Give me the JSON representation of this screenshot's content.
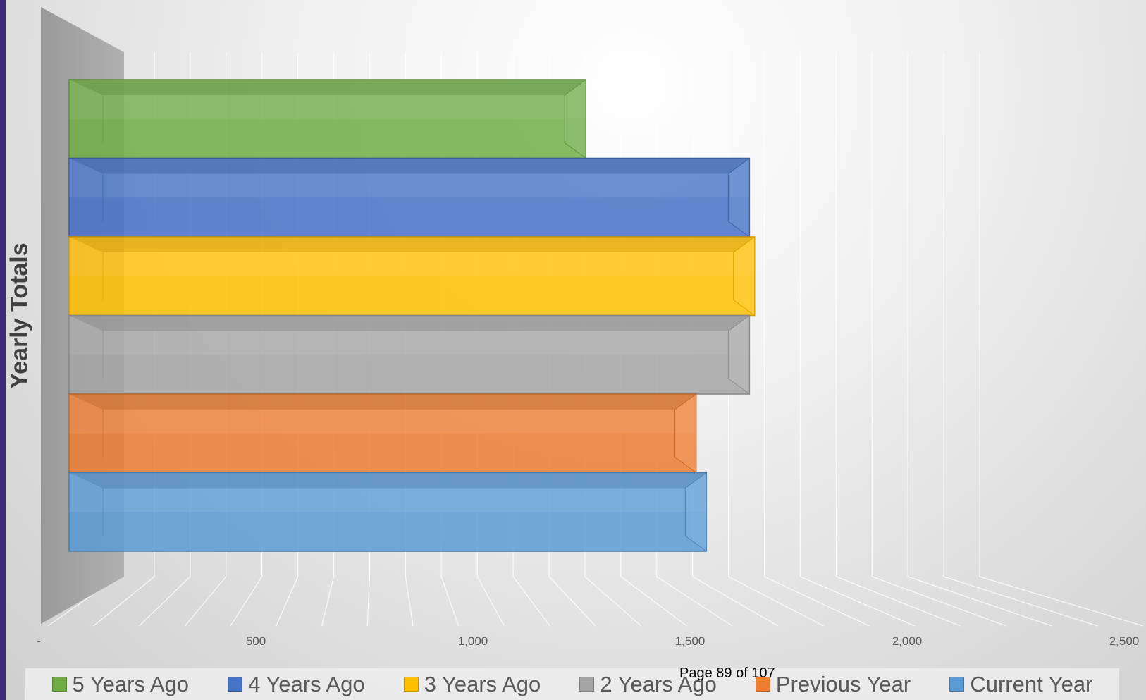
{
  "chart_data": {
    "type": "bar",
    "orientation": "horizontal",
    "three_d": true,
    "ylabel": "Yearly Totals",
    "xlabel": "",
    "xlim": [
      0,
      2500
    ],
    "x_tick_labels": [
      "-",
      "500",
      "1,000",
      "1,500",
      "2,000",
      "2,500"
    ],
    "x_tick_values": [
      0,
      500,
      1000,
      1500,
      2000,
      2500
    ],
    "grid": true,
    "legend_position": "bottom",
    "series": [
      {
        "name": "5 Years Ago",
        "value": 1500,
        "color": "#70ad47"
      },
      {
        "name": "4 Years Ago",
        "value": 1975,
        "color": "#4472c4"
      },
      {
        "name": "3 Years Ago",
        "value": 1990,
        "color": "#ffc000"
      },
      {
        "name": "2 Years Ago",
        "value": 1975,
        "color": "#a5a5a5"
      },
      {
        "name": "Previous Year",
        "value": 1820,
        "color": "#ed7d31"
      },
      {
        "name": "Current Year",
        "value": 1850,
        "color": "#5b9bd5"
      }
    ]
  },
  "footer": {
    "page_label": "Page 89 of 107"
  }
}
